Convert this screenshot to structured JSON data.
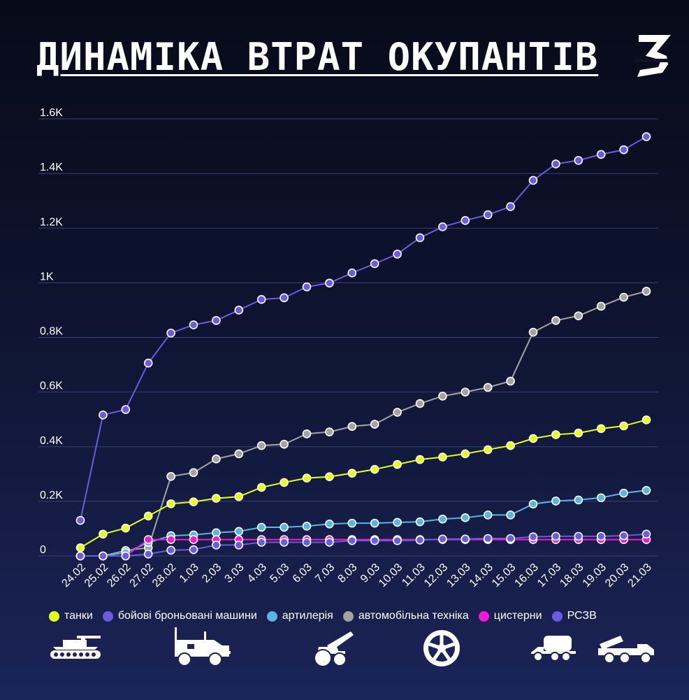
{
  "title": "ДИНАМІКА ВТРАТ ОКУПАНТІВ",
  "logo_text": "З",
  "colors": {
    "grid": "#3a4270",
    "axis_text": "#ffffff",
    "tanks": "#e4ff1a",
    "armored": "#6a5be0",
    "artillery": "#5ab4e6",
    "vehicles": "#a3a3a3",
    "tankers": "#f21ad6",
    "mlrs": "#6a5be0",
    "icon": "#ffffff"
  },
  "icons": [
    "tank-icon",
    "armored-vehicle-icon",
    "artillery-icon",
    "wheel-icon",
    "tanker-truck-icon",
    "mlrs-icon"
  ],
  "chart_data": {
    "type": "line",
    "title": "ДИНАМІКА ВТРАТ ОКУПАНТІВ",
    "xlabel": "",
    "ylabel": "",
    "ylim": [
      0,
      1600
    ],
    "yticks": [
      {
        "value": 0,
        "label": "0"
      },
      {
        "value": 200,
        "label": "0.2K"
      },
      {
        "value": 400,
        "label": "0.4K"
      },
      {
        "value": 600,
        "label": "0.6K"
      },
      {
        "value": 800,
        "label": "0.8K"
      },
      {
        "value": 1000,
        "label": "1K"
      },
      {
        "value": 1200,
        "label": "1.2K"
      },
      {
        "value": 1400,
        "label": "1.4K"
      },
      {
        "value": 1600,
        "label": "1.6K"
      }
    ],
    "grid": true,
    "legend_position": "bottom",
    "categories": [
      "24.02",
      "25.02",
      "26.02",
      "27.02",
      "28.02",
      "1.03",
      "2.03",
      "3.03",
      "4.03",
      "5.03",
      "6.03",
      "7.03",
      "8.03",
      "9.03",
      "10.03",
      "11.03",
      "12.03",
      "13.03",
      "14.03",
      "15.03",
      "16.03",
      "17.03",
      "18.03",
      "19.03",
      "20.03",
      "21.03"
    ],
    "series": [
      {
        "name": "танки",
        "key": "tanks",
        "color": "#e4ff1a",
        "values": [
          30,
          80,
          102,
          146,
          191,
          198,
          211,
          217,
          251,
          269,
          285,
          290,
          303,
          317,
          335,
          353,
          362,
          374,
          389,
          404,
          430,
          444,
          450,
          466,
          476,
          498
        ]
      },
      {
        "name": "бойові броньовані машини",
        "key": "armored",
        "color": "#6a5be0",
        "values": [
          130,
          516,
          536,
          706,
          816,
          846,
          862,
          900,
          939,
          945,
          985,
          999,
          1036,
          1070,
          1105,
          1165,
          1205,
          1228,
          1249,
          1279,
          1375,
          1435,
          1448,
          1470,
          1487,
          1535
        ]
      },
      {
        "name": "артилерія",
        "key": "artillery",
        "color": "#5ab4e6",
        "values": [
          0,
          0,
          12,
          49,
          74,
          77,
          85,
          90,
          105,
          105,
          109,
          117,
          120,
          120,
          123,
          125,
          135,
          140,
          150,
          150,
          190,
          201,
          205,
          213,
          230,
          240
        ]
      },
      {
        "name": "автомобільна техніка",
        "key": "vehicles",
        "color": "#a3a3a3",
        "values": [
          0,
          0,
          20,
          30,
          291,
          305,
          355,
          374,
          404,
          409,
          447,
          454,
          474,
          482,
          526,
          558,
          585,
          600,
          617,
          640,
          819,
          862,
          879,
          914,
          947,
          969
        ]
      },
      {
        "name": "цистерни",
        "key": "tankers",
        "color": "#f21ad6",
        "values": [
          0,
          0,
          0,
          60,
          60,
          60,
          60,
          60,
          60,
          60,
          60,
          60,
          60,
          60,
          60,
          60,
          60,
          60,
          60,
          60,
          60,
          60,
          60,
          60,
          60,
          60
        ]
      },
      {
        "name": "РСЗВ",
        "key": "mlrs",
        "color": "#6a5be0",
        "values": [
          0,
          0,
          0,
          7,
          21,
          23,
          40,
          40,
          50,
          50,
          50,
          50,
          56,
          56,
          56,
          58,
          62,
          62,
          64,
          64,
          70,
          72,
          72,
          72,
          74,
          80
        ]
      }
    ]
  }
}
